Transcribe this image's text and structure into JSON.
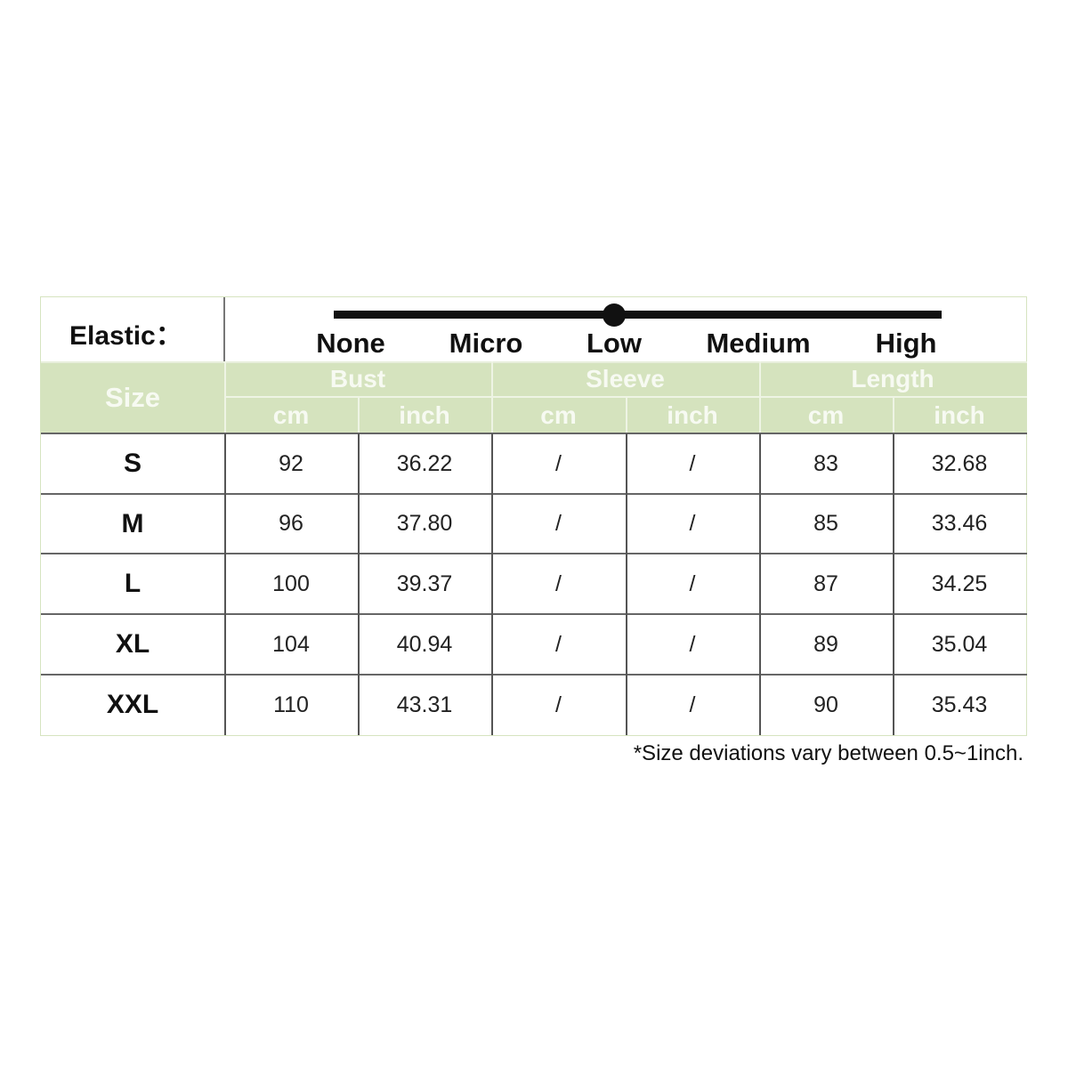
{
  "elastic": {
    "label": "Elastic：",
    "levels": [
      "None",
      "Micro",
      "Low",
      "Medium",
      "High"
    ],
    "selected_level": "Low"
  },
  "header": {
    "size": "Size",
    "groups": [
      "Bust",
      "Sleeve",
      "Length"
    ],
    "units": [
      "cm",
      "inch",
      "cm",
      "inch",
      "cm",
      "inch"
    ]
  },
  "rows": [
    {
      "size": "S",
      "values": [
        "92",
        "36.22",
        "/",
        "/",
        "83",
        "32.68"
      ]
    },
    {
      "size": "M",
      "values": [
        "96",
        "37.80",
        "/",
        "/",
        "85",
        "33.46"
      ]
    },
    {
      "size": "L",
      "values": [
        "100",
        "39.37",
        "/",
        "/",
        "87",
        "34.25"
      ]
    },
    {
      "size": "XL",
      "values": [
        "104",
        "40.94",
        "/",
        "/",
        "89",
        "35.04"
      ]
    },
    {
      "size": "XXL",
      "values": [
        "110",
        "43.31",
        "/",
        "/",
        "90",
        "35.43"
      ]
    }
  ],
  "footnote": "*Size deviations vary between 0.5~1inch.",
  "colors": {
    "header_green": "#d5e3be",
    "header_text": "#f7faf2"
  }
}
